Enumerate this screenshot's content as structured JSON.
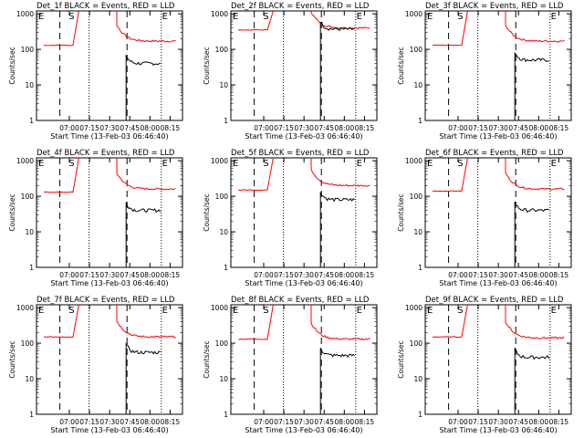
{
  "chart_data": [
    {
      "type": "line",
      "title": "Det_1f BLACK = Events, RED = LLD",
      "xlabel": "Start Time (13-Feb-03 06:46:40)",
      "ylabel": "Counts/sec",
      "xticks": [
        "07:00",
        "07:15",
        "07:30",
        "07:45",
        "08:00",
        "08:15"
      ],
      "yticks": [
        "1",
        "10",
        "100",
        "1000"
      ],
      "markers": [
        "E",
        "S",
        "E"
      ],
      "ylim": [
        1,
        1200
      ],
      "series": [
        {
          "name": "LLD",
          "color": "#ff0000",
          "peak": 1200,
          "base": 130,
          "tail": 170
        },
        {
          "name": "Events",
          "color": "#000000",
          "level": 40
        }
      ]
    },
    {
      "type": "line",
      "title": "Det_2f BLACK = Events, RED = LLD",
      "xlabel": "Start Time (13-Feb-03 06:46:40)",
      "ylabel": "Counts/sec",
      "xticks": [
        "07:00",
        "07:15",
        "07:30",
        "07:45",
        "08:00",
        "08:15"
      ],
      "yticks": [
        "1",
        "10",
        "100",
        "1000"
      ],
      "markers": [
        "E",
        "S",
        "E"
      ],
      "ylim": [
        1,
        1200
      ],
      "series": [
        {
          "name": "LLD",
          "color": "#ff0000",
          "peak": 1200,
          "base": 350,
          "tail": 400
        },
        {
          "name": "Events",
          "color": "#000000",
          "level": 370
        }
      ]
    },
    {
      "type": "line",
      "title": "Det_3f BLACK = Events, RED = LLD",
      "xlabel": "Start Time (13-Feb-03 06:46:40)",
      "ylabel": "Counts/sec",
      "xticks": [
        "07:00",
        "07:15",
        "07:30",
        "07:45",
        "08:00",
        "08:15"
      ],
      "yticks": [
        "1",
        "10",
        "100",
        "1000"
      ],
      "markers": [
        "E",
        "S",
        "E"
      ],
      "ylim": [
        1,
        1200
      ],
      "series": [
        {
          "name": "LLD",
          "color": "#ff0000",
          "peak": 1200,
          "base": 130,
          "tail": 170
        },
        {
          "name": "Events",
          "color": "#000000",
          "level": 50
        }
      ]
    },
    {
      "type": "line",
      "title": "Det_4f BLACK = Events, RED = LLD",
      "xlabel": "Start Time (13-Feb-03 06:46:40)",
      "ylabel": "Counts/sec",
      "xticks": [
        "07:00",
        "07:15",
        "07:30",
        "07:45",
        "08:00",
        "08:15"
      ],
      "yticks": [
        "1",
        "10",
        "100",
        "1000"
      ],
      "markers": [
        "E",
        "S",
        "E"
      ],
      "ylim": [
        1,
        1200
      ],
      "series": [
        {
          "name": "LLD",
          "color": "#ff0000",
          "peak": 1200,
          "base": 130,
          "tail": 160
        },
        {
          "name": "Events",
          "color": "#000000",
          "level": 40
        }
      ]
    },
    {
      "type": "line",
      "title": "Det_5f BLACK = Events, RED = LLD",
      "xlabel": "Start Time (13-Feb-03 06:46:40)",
      "ylabel": "Counts/sec",
      "xticks": [
        "07:00",
        "07:15",
        "07:30",
        "07:45",
        "08:00",
        "08:15"
      ],
      "yticks": [
        "1",
        "10",
        "100",
        "1000"
      ],
      "markers": [
        "E",
        "S",
        "E"
      ],
      "ylim": [
        1,
        1200
      ],
      "series": [
        {
          "name": "LLD",
          "color": "#ff0000",
          "peak": 1200,
          "base": 150,
          "tail": 200
        },
        {
          "name": "Events",
          "color": "#000000",
          "level": 80
        }
      ]
    },
    {
      "type": "line",
      "title": "Det_6f BLACK = Events, RED = LLD",
      "xlabel": "Start Time (13-Feb-03 06:46:40)",
      "ylabel": "Counts/sec",
      "xticks": [
        "07:00",
        "07:15",
        "07:30",
        "07:45",
        "08:00",
        "08:15"
      ],
      "yticks": [
        "1",
        "10",
        "100",
        "1000"
      ],
      "markers": [
        "E",
        "S",
        "E"
      ],
      "ylim": [
        1,
        1200
      ],
      "series": [
        {
          "name": "LLD",
          "color": "#ff0000",
          "peak": 1200,
          "base": 140,
          "tail": 160
        },
        {
          "name": "Events",
          "color": "#000000",
          "level": 40
        }
      ]
    },
    {
      "type": "line",
      "title": "Det_7f BLACK = Events, RED = LLD",
      "xlabel": "Start Time (13-Feb-03 06:46:40)",
      "ylabel": "Counts/sec",
      "xticks": [
        "07:00",
        "07:15",
        "07:30",
        "07:45",
        "08:00",
        "08:15"
      ],
      "yticks": [
        "1",
        "10",
        "100",
        "1000"
      ],
      "markers": [
        "E",
        "S",
        "E"
      ],
      "ylim": [
        1,
        1200
      ],
      "series": [
        {
          "name": "LLD",
          "color": "#ff0000",
          "peak": 1200,
          "base": 150,
          "tail": 150
        },
        {
          "name": "Events",
          "color": "#000000",
          "level": 55
        }
      ]
    },
    {
      "type": "line",
      "title": "Det_8f BLACK = Events, RED = LLD",
      "xlabel": "Start Time (13-Feb-03 06:46:40)",
      "ylabel": "Counts/sec",
      "xticks": [
        "07:00",
        "07:15",
        "07:30",
        "07:45",
        "08:00",
        "08:15"
      ],
      "yticks": [
        "1",
        "10",
        "100",
        "1000"
      ],
      "markers": [
        "E",
        "S",
        "E"
      ],
      "ylim": [
        1,
        1200
      ],
      "series": [
        {
          "name": "LLD",
          "color": "#ff0000",
          "peak": 1200,
          "base": 130,
          "tail": 130
        },
        {
          "name": "Events",
          "color": "#000000",
          "level": 45
        }
      ]
    },
    {
      "type": "line",
      "title": "Det_9f BLACK = Events, RED = LLD",
      "xlabel": "Start Time (13-Feb-03 06:46:40)",
      "ylabel": "Counts/sec",
      "xticks": [
        "07:00",
        "07:15",
        "07:30",
        "07:45",
        "08:00",
        "08:15"
      ],
      "yticks": [
        "1",
        "10",
        "100",
        "1000"
      ],
      "markers": [
        "E",
        "S",
        "E"
      ],
      "ylim": [
        1,
        1200
      ],
      "series": [
        {
          "name": "LLD",
          "color": "#ff0000",
          "peak": 1200,
          "base": 150,
          "tail": 140
        },
        {
          "name": "Events",
          "color": "#000000",
          "level": 40
        }
      ]
    }
  ]
}
